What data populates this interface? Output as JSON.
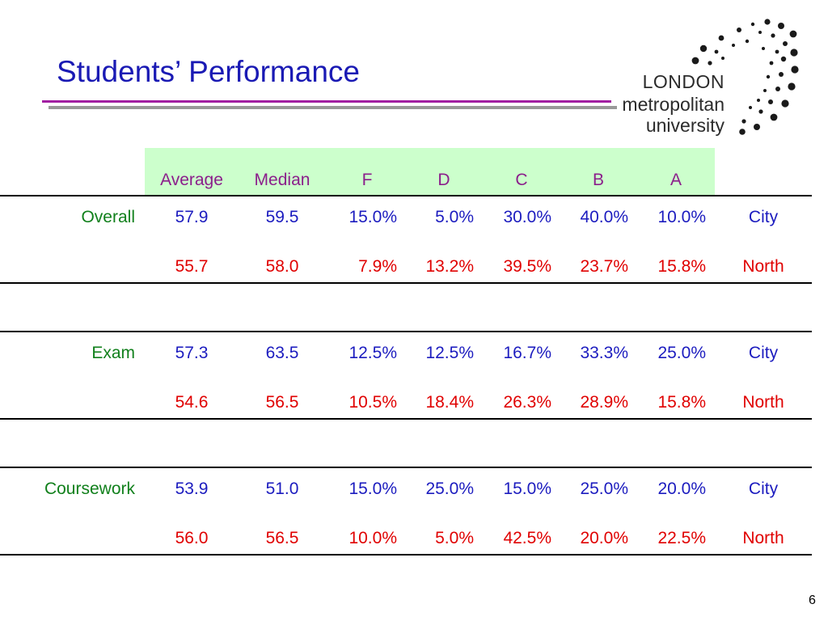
{
  "title": "Students’ Performance",
  "logo": {
    "line1": "LONDON",
    "line2": "metropolitan",
    "line3": "university"
  },
  "table": {
    "columns": [
      "Average",
      "Median",
      "F",
      "D",
      "C",
      "B",
      "A"
    ],
    "sections": [
      {
        "label": "Overall",
        "rows": [
          {
            "values": [
              "57.9",
              "59.5",
              "15.0%",
              "5.0%",
              "30.0%",
              "40.0%",
              "10.0%"
            ],
            "campus": "City"
          },
          {
            "values": [
              "55.7",
              "58.0",
              "7.9%",
              "13.2%",
              "39.5%",
              "23.7%",
              "15.8%"
            ],
            "campus": "North"
          }
        ]
      },
      {
        "label": "Exam",
        "rows": [
          {
            "values": [
              "57.3",
              "63.5",
              "12.5%",
              "12.5%",
              "16.7%",
              "33.3%",
              "25.0%"
            ],
            "campus": "City"
          },
          {
            "values": [
              "54.6",
              "56.5",
              "10.5%",
              "18.4%",
              "26.3%",
              "28.9%",
              "15.8%"
            ],
            "campus": "North"
          }
        ]
      },
      {
        "label": "Coursework",
        "rows": [
          {
            "values": [
              "53.9",
              "51.0",
              "15.0%",
              "25.0%",
              "15.0%",
              "25.0%",
              "20.0%"
            ],
            "campus": "City"
          },
          {
            "values": [
              "56.0",
              "56.5",
              "10.0%",
              "5.0%",
              "42.5%",
              "20.0%",
              "22.5%"
            ],
            "campus": "North"
          }
        ]
      }
    ]
  },
  "colors": {
    "city": "#1c1cbf",
    "north": "#e00000",
    "label": "#11801c",
    "header": "#8b1e8b",
    "header_bg": "#ccffcc"
  },
  "page_number": "6"
}
